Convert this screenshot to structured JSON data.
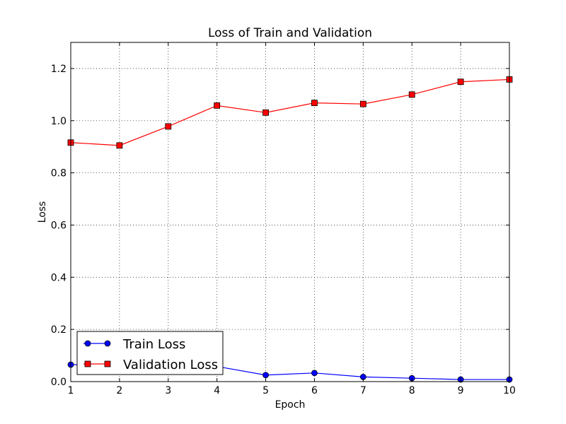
{
  "chart_data": {
    "type": "line",
    "title": "Loss of Train and Validation",
    "xlabel": "Epoch",
    "ylabel": "Loss",
    "x": [
      1,
      2,
      3,
      4,
      5,
      6,
      7,
      8,
      9,
      10
    ],
    "xlim": [
      1,
      10
    ],
    "ylim": [
      0,
      1.3
    ],
    "xticks": [
      "1",
      "2",
      "3",
      "4",
      "5",
      "6",
      "7",
      "8",
      "9",
      "10"
    ],
    "yticks": [
      "0.0",
      "0.2",
      "0.4",
      "0.6",
      "0.8",
      "1.0",
      "1.2"
    ],
    "grid": true,
    "legend_position": "lower-left",
    "series": [
      {
        "name": "Train Loss",
        "color": "#0000ff",
        "marker": "circle",
        "values": [
          0.065,
          0.062,
          0.06,
          0.058,
          0.025,
          0.033,
          0.018,
          0.013,
          0.008,
          0.008
        ]
      },
      {
        "name": "Validation Loss",
        "color": "#ff0000",
        "marker": "square",
        "values": [
          0.916,
          0.905,
          0.978,
          1.058,
          1.031,
          1.068,
          1.064,
          1.1,
          1.149,
          1.158
        ]
      }
    ]
  }
}
